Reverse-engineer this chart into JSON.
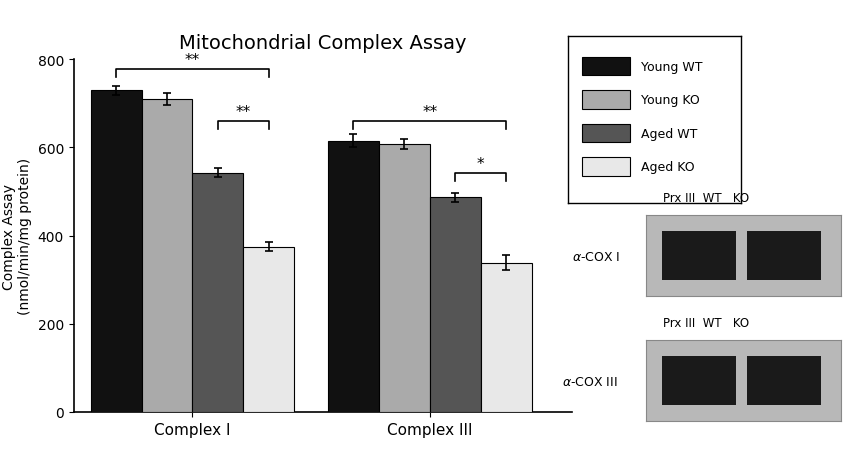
{
  "title": "Mitochondrial Complex Assay",
  "ylabel": "Complex Assay\n(nmol/min/mg protein)",
  "xlabel_groups": [
    "Complex I",
    "Complex III"
  ],
  "ylim": [
    0,
    800
  ],
  "yticks": [
    0,
    200,
    400,
    600,
    800
  ],
  "bar_width": 0.15,
  "group_centers": [
    0.4,
    1.1
  ],
  "series": [
    {
      "label": "Young WT",
      "color": "#111111",
      "values": [
        730,
        615
      ],
      "errors": [
        10,
        15
      ]
    },
    {
      "label": "Young KO",
      "color": "#aaaaaa",
      "values": [
        710,
        608
      ],
      "errors": [
        14,
        11
      ]
    },
    {
      "label": "Aged WT",
      "color": "#555555",
      "values": [
        543,
        487
      ],
      "errors": [
        10,
        10
      ]
    },
    {
      "label": "Aged KO",
      "color": "#e8e8e8",
      "values": [
        375,
        338
      ],
      "errors": [
        10,
        17
      ]
    }
  ],
  "legend_labels": [
    "Young WT",
    "Young KO",
    "Aged WT",
    "Aged KO"
  ],
  "legend_colors": [
    "#111111",
    "#aaaaaa",
    "#555555",
    "#e8e8e8"
  ],
  "blot1_label_top": "Prx III WT  KO",
  "blot1_label_left": "α-COX I",
  "blot2_label_top": "Prx III WT  KO",
  "blot2_label_left": "α-COX III",
  "background_color": "#ffffff"
}
